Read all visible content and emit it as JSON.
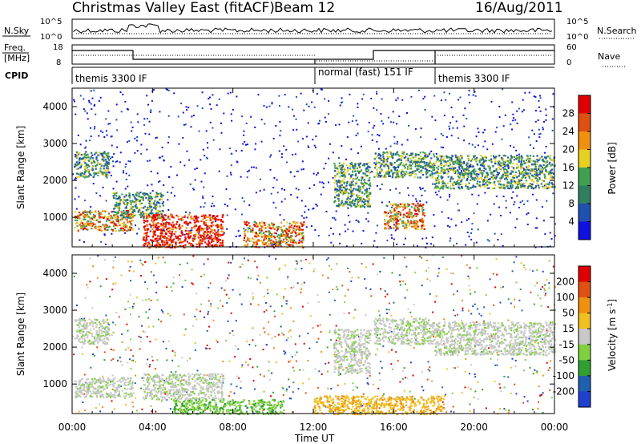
{
  "header": {
    "title": "Christmas Valley East (fitACF)",
    "beam": "Beam 12",
    "date": "16/Aug/2011"
  },
  "sky_panel": {
    "left_label": "N.Sky",
    "left_ticks": [
      "10^5",
      "10^0"
    ],
    "right_ticks": [
      "10^5",
      "10^0"
    ],
    "right_label": "N.Search"
  },
  "freq_panel": {
    "left_label_1": "Freq.",
    "left_label_2": "[MHz]",
    "left_ticks": [
      "18",
      "8"
    ],
    "right_ticks": [
      "60",
      "0"
    ],
    "right_label": "Nave"
  },
  "cpid_panel": {
    "label": "CPID",
    "segments": [
      {
        "text": "themis 3300 IF",
        "start_hr": 0.0
      },
      {
        "text": "normal (fast) 151 IF",
        "start_hr": 12.0
      },
      {
        "text": "themis 3300 IF",
        "start_hr": 18.0
      }
    ]
  },
  "time_axis": {
    "label": "Time UT",
    "ticks": [
      "00:00",
      "04:00",
      "08:00",
      "12:00",
      "16:00",
      "20:00",
      "00:00"
    ]
  },
  "chart_data": [
    {
      "type": "heatmap",
      "title": "",
      "xlabel": "Time UT",
      "ylabel": "Slant Range [km]",
      "xlim": [
        0,
        24
      ],
      "ylim": [
        200,
        4500
      ],
      "y_ticks": [
        1000,
        2000,
        3000,
        4000
      ],
      "colorbar": {
        "label": "Power [dB]",
        "ticks": [
          "4",
          "8",
          "12",
          "16",
          "20",
          "24",
          "28"
        ],
        "colors": [
          "#1010e0",
          "#2050b0",
          "#308060",
          "#40a050",
          "#e8d020",
          "#f09010",
          "#e05010",
          "#e00000"
        ]
      },
      "scatter_regions": [
        {
          "t": [
            0.1,
            1.8
          ],
          "r": [
            2100,
            2800
          ],
          "level": "mid"
        },
        {
          "t": [
            0.1,
            3.0
          ],
          "r": [
            650,
            1200
          ],
          "level": "high"
        },
        {
          "t": [
            2.0,
            4.5
          ],
          "r": [
            1000,
            1700
          ],
          "level": "mid"
        },
        {
          "t": [
            3.5,
            7.5
          ],
          "r": [
            200,
            1100
          ],
          "level": "max"
        },
        {
          "t": [
            8.5,
            11.5
          ],
          "r": [
            200,
            900
          ],
          "level": "high"
        },
        {
          "t": [
            13.0,
            14.8
          ],
          "r": [
            1300,
            2500
          ],
          "level": "mid"
        },
        {
          "t": [
            15.0,
            18.0
          ],
          "r": [
            2100,
            2800
          ],
          "level": "mid"
        },
        {
          "t": [
            15.5,
            17.5
          ],
          "r": [
            700,
            1400
          ],
          "level": "high"
        },
        {
          "t": [
            18.0,
            24.0
          ],
          "r": [
            1800,
            2700
          ],
          "level": "mid"
        }
      ]
    },
    {
      "type": "heatmap",
      "title": "",
      "xlabel": "Time UT",
      "ylabel": "Slant Range [km]",
      "xlim": [
        0,
        24
      ],
      "ylim": [
        200,
        4500
      ],
      "y_ticks": [
        1000,
        2000,
        3000,
        4000
      ],
      "colorbar": {
        "label": "Velocity [m s^-1]",
        "ticks": [
          "200",
          "100",
          "50",
          "15",
          "-15",
          "-50",
          "-100",
          "-200"
        ],
        "colors": [
          "#2040d0",
          "#2060b0",
          "#30a030",
          "#80d040",
          "#c8c8c8",
          "#f0c020",
          "#f09010",
          "#e05010",
          "#e00000"
        ]
      },
      "scatter_regions": [
        {
          "t": [
            0.1,
            1.8
          ],
          "r": [
            2100,
            2800
          ],
          "level": "grey"
        },
        {
          "t": [
            0.1,
            3.0
          ],
          "r": [
            650,
            1200
          ],
          "level": "grey"
        },
        {
          "t": [
            3.5,
            7.5
          ],
          "r": [
            600,
            1300
          ],
          "level": "grey"
        },
        {
          "t": [
            5.0,
            10.5
          ],
          "r": [
            200,
            600
          ],
          "level": "green"
        },
        {
          "t": [
            12.0,
            18.5
          ],
          "r": [
            200,
            700
          ],
          "level": "orange"
        },
        {
          "t": [
            13.0,
            14.8
          ],
          "r": [
            1300,
            2500
          ],
          "level": "grey"
        },
        {
          "t": [
            15.0,
            18.0
          ],
          "r": [
            2100,
            2800
          ],
          "level": "grey"
        },
        {
          "t": [
            18.0,
            24.0
          ],
          "r": [
            1800,
            2700
          ],
          "level": "grey"
        }
      ]
    }
  ]
}
